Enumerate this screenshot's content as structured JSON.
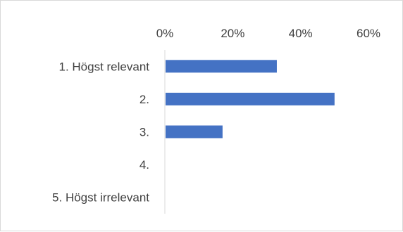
{
  "chart_data": {
    "type": "bar",
    "orientation": "horizontal",
    "categories": [
      "1. Högst relevant",
      "2.",
      "3.",
      "4.",
      "5. Högst irrelevant"
    ],
    "values": [
      0.33,
      0.5,
      0.17,
      0,
      0
    ],
    "xlim": [
      0,
      0.6
    ],
    "x_ticks": [
      {
        "value": 0,
        "label": "0%"
      },
      {
        "value": 0.2,
        "label": "20%"
      },
      {
        "value": 0.4,
        "label": "40%"
      },
      {
        "value": 0.6,
        "label": "60%"
      }
    ],
    "x_axis_position": "top",
    "grid": false,
    "legend": "none",
    "bar_color": "#4472c4",
    "axis_color": "#d9d9d9"
  }
}
